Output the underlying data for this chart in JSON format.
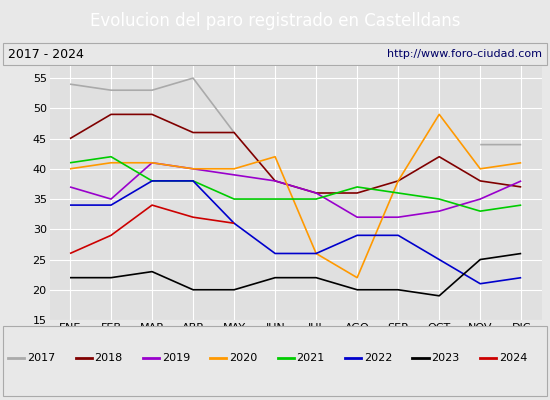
{
  "title": "Evolucion del paro registrado en Castelldans",
  "subtitle_left": "2017 - 2024",
  "subtitle_right": "http://www.foro-ciudad.com",
  "months": [
    "ENE",
    "FEB",
    "MAR",
    "ABR",
    "MAY",
    "JUN",
    "JUL",
    "AGO",
    "SEP",
    "OCT",
    "NOV",
    "DIC"
  ],
  "ylim": [
    15,
    57
  ],
  "yticks": [
    15,
    20,
    25,
    30,
    35,
    40,
    45,
    50,
    55
  ],
  "series": {
    "2017": {
      "values": [
        54,
        53,
        53,
        55,
        46,
        null,
        null,
        null,
        null,
        null,
        44,
        44
      ],
      "color": "#aaaaaa"
    },
    "2018": {
      "values": [
        45,
        49,
        49,
        46,
        46,
        38,
        36,
        36,
        38,
        42,
        38,
        37
      ],
      "color": "#800000"
    },
    "2019": {
      "values": [
        37,
        35,
        41,
        40,
        39,
        38,
        36,
        32,
        32,
        33,
        35,
        38
      ],
      "color": "#9900cc"
    },
    "2020": {
      "values": [
        40,
        41,
        41,
        40,
        40,
        42,
        26,
        22,
        38,
        49,
        40,
        41
      ],
      "color": "#ff9900"
    },
    "2021": {
      "values": [
        41,
        42,
        38,
        38,
        35,
        35,
        35,
        37,
        36,
        35,
        33,
        34
      ],
      "color": "#00cc00"
    },
    "2022": {
      "values": [
        34,
        34,
        38,
        38,
        31,
        26,
        26,
        29,
        29,
        25,
        21,
        22
      ],
      "color": "#0000cc"
    },
    "2023": {
      "values": [
        22,
        22,
        23,
        20,
        20,
        22,
        22,
        20,
        20,
        19,
        25,
        26
      ],
      "color": "#000000"
    },
    "2024": {
      "values": [
        26,
        29,
        34,
        32,
        31,
        null,
        null,
        null,
        null,
        null,
        null,
        null
      ],
      "color": "#cc0000"
    }
  },
  "years_order": [
    "2017",
    "2018",
    "2019",
    "2020",
    "2021",
    "2022",
    "2023",
    "2024"
  ],
  "title_bg_color": "#5588cc",
  "title_color": "#ffffff",
  "header_bg_color": "#e8e8e8",
  "plot_bg_color": "#e0e0e0",
  "fig_bg_color": "#e8e8e8",
  "grid_color": "#ffffff",
  "border_color": "#aaaaaa",
  "title_fontsize": 12,
  "label_fontsize": 8,
  "legend_fontsize": 8
}
